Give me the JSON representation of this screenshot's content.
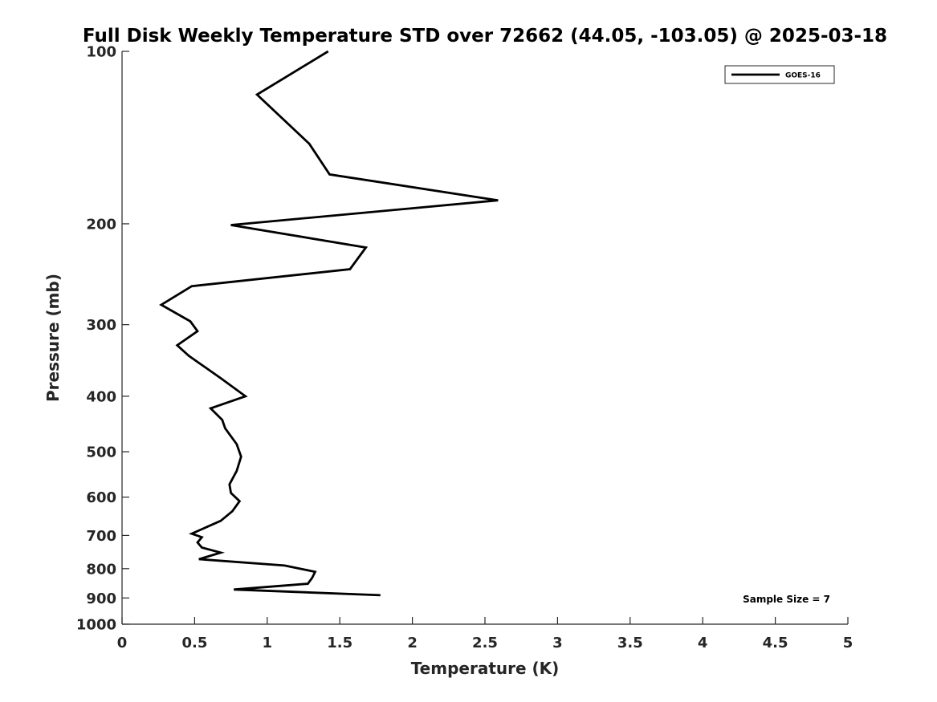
{
  "chart_data": {
    "type": "line",
    "title": "Full Disk Weekly Temperature STD over 72662 (44.05, -103.05) @ 2025-03-18",
    "xlabel": "Temperature (K)",
    "ylabel": "Pressure (mb)",
    "xlim": [
      0,
      5
    ],
    "ylim": [
      100,
      1000
    ],
    "yscale": "log",
    "y_reversed": true,
    "grid": false,
    "legend_position": "top-right",
    "x_ticks": [
      0,
      0.5,
      1,
      1.5,
      2,
      2.5,
      3,
      3.5,
      4,
      4.5,
      5
    ],
    "x_tick_labels": [
      "0",
      "0.5",
      "1",
      "1.5",
      "2",
      "2.5",
      "3",
      "3.5",
      "4",
      "4.5",
      "5"
    ],
    "y_ticks": [
      100,
      200,
      300,
      400,
      500,
      600,
      700,
      800,
      900,
      1000
    ],
    "y_tick_labels": [
      "100",
      "200",
      "300",
      "400",
      "500",
      "600",
      "700",
      "800",
      "900",
      "1000"
    ],
    "series": [
      {
        "name": "GOES-16",
        "color": "#000000",
        "x": [
          1.42,
          0.93,
          1.29,
          1.43,
          2.59,
          0.75,
          1.68,
          1.57,
          0.48,
          0.27,
          0.47,
          0.52,
          0.38,
          0.46,
          0.68,
          0.85,
          0.61,
          0.69,
          0.71,
          0.79,
          0.82,
          0.79,
          0.74,
          0.75,
          0.81,
          0.76,
          0.68,
          0.48,
          0.55,
          0.52,
          0.55,
          0.68,
          0.53,
          1.12,
          1.33,
          1.31,
          1.28,
          0.77,
          1.78
        ],
        "y": [
          100,
          119,
          145,
          164,
          182,
          201,
          220,
          240,
          257,
          277,
          296,
          308,
          326,
          340,
          372,
          400,
          420,
          440,
          455,
          485,
          510,
          540,
          570,
          590,
          610,
          635,
          660,
          695,
          705,
          720,
          735,
          750,
          770,
          790,
          810,
          830,
          850,
          870,
          890
        ]
      }
    ],
    "annotations": [
      "Sample Size = 7"
    ]
  }
}
